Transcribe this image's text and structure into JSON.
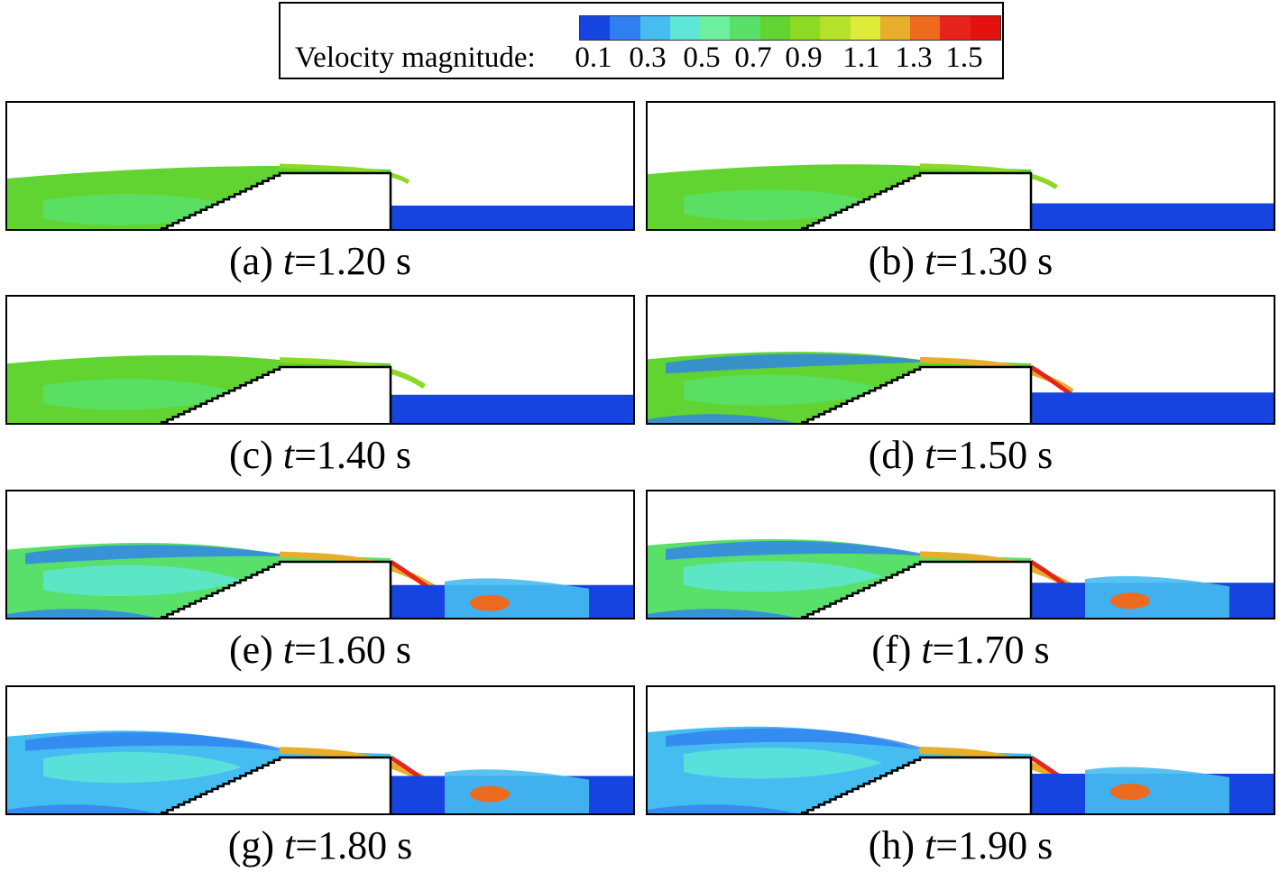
{
  "legend": {
    "title": "Velocity magnitude:",
    "ticks": [
      "0.1",
      "0.3",
      "0.5",
      "0.7",
      "0.9",
      "1.1",
      "1.3",
      "1.5"
    ],
    "colors": [
      "#1544e0",
      "#2f7ff0",
      "#46bdf0",
      "#5ee6d6",
      "#6cf0a0",
      "#58e06a",
      "#62d431",
      "#8cda24",
      "#b6e12a",
      "#dcec38",
      "#e6ae2a",
      "#ee6a1e",
      "#e8231c",
      "#e51010"
    ]
  },
  "panels": [
    {
      "label": "(a) ",
      "tvar": "t",
      "value": "=1.20 s",
      "stage": 0.0
    },
    {
      "label": "(b) ",
      "tvar": "t",
      "value": "=1.30 s",
      "stage": 0.14
    },
    {
      "label": "(c) ",
      "tvar": "t",
      "value": "=1.40 s",
      "stage": 0.29
    },
    {
      "label": "(d) ",
      "tvar": "t",
      "value": "=1.50 s",
      "stage": 0.43
    },
    {
      "label": "(e) ",
      "tvar": "t",
      "value": "=1.60 s",
      "stage": 0.57
    },
    {
      "label": "(f) ",
      "tvar": "t",
      "value": "=1.70 s",
      "stage": 0.71
    },
    {
      "label": "(g) ",
      "tvar": "t",
      "value": "=1.80 s",
      "stage": 0.86
    },
    {
      "label": "(h) ",
      "tvar": "t",
      "value": "=1.90 s",
      "stage": 1.0
    }
  ]
}
